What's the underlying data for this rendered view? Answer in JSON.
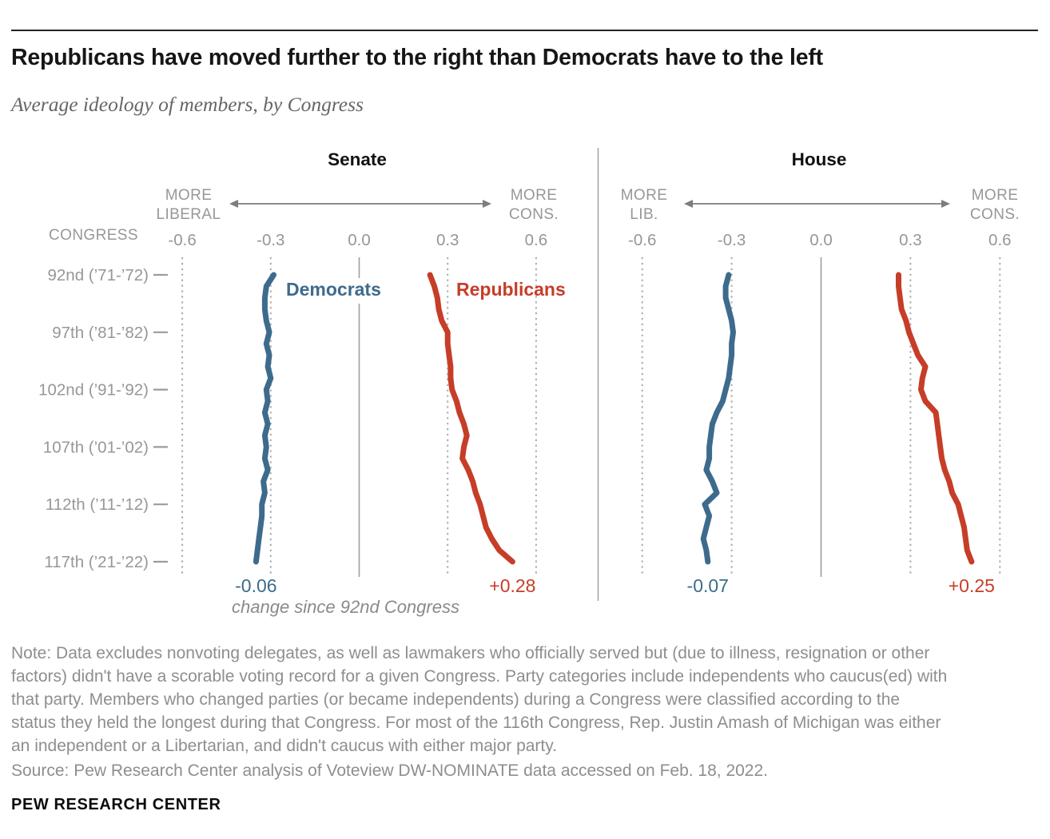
{
  "header": {
    "title": "Republicans have moved further to the right than Democrats have to the left",
    "subtitle": "Average ideology of members, by Congress"
  },
  "chart_data": {
    "type": "line",
    "x_axis": {
      "ticks": [
        "-0.6",
        "-0.3",
        "0.0",
        "0.3",
        "0.6"
      ],
      "tick_values": [
        -0.6,
        -0.3,
        0,
        0.3,
        0.6
      ],
      "range": [
        -0.6,
        0.6
      ]
    },
    "y_axis": {
      "title": "CONGRESS",
      "first_congress": 92,
      "last_congress": 117,
      "labeled_ticks": [
        {
          "congress": 92,
          "label": "92nd (’71-’72)"
        },
        {
          "congress": 97,
          "label": "97th (’81-’82)"
        },
        {
          "congress": 102,
          "label": "102nd (’91-’92)"
        },
        {
          "congress": 107,
          "label": "107th (’01-’02)"
        },
        {
          "congress": 112,
          "label": "112th (’11-’12)"
        },
        {
          "congress": 117,
          "label": "117th (’21-’22)"
        }
      ]
    },
    "panels": [
      {
        "title": "Senate",
        "left_label": [
          "MORE",
          "LIBERAL"
        ],
        "right_label": [
          "MORE",
          "CONS."
        ],
        "series": [
          {
            "name": "Democrats",
            "color": "#3d6b8c",
            "change_label": "-0.06",
            "values": [
              -0.29,
              -0.315,
              -0.32,
              -0.32,
              -0.315,
              -0.305,
              -0.315,
              -0.305,
              -0.31,
              -0.3,
              -0.315,
              -0.31,
              -0.32,
              -0.31,
              -0.32,
              -0.315,
              -0.32,
              -0.31,
              -0.325,
              -0.32,
              -0.33,
              -0.33,
              -0.335,
              -0.34,
              -0.345,
              -0.35
            ]
          },
          {
            "name": "Republicans",
            "color": "#c63d28",
            "change_label": "+0.28",
            "values": [
              0.24,
              0.255,
              0.265,
              0.27,
              0.28,
              0.3,
              0.3,
              0.305,
              0.31,
              0.31,
              0.315,
              0.33,
              0.34,
              0.355,
              0.365,
              0.355,
              0.35,
              0.37,
              0.385,
              0.395,
              0.41,
              0.42,
              0.43,
              0.45,
              0.475,
              0.52
            ]
          }
        ]
      },
      {
        "title": "House",
        "left_label": [
          "MORE",
          "LIB."
        ],
        "right_label": [
          "MORE",
          "CONS."
        ],
        "series": [
          {
            "name": "Democrats",
            "color": "#3d6b8c",
            "change_label": "-0.07",
            "values": [
              -0.31,
              -0.32,
              -0.32,
              -0.31,
              -0.3,
              -0.295,
              -0.3,
              -0.3,
              -0.305,
              -0.31,
              -0.32,
              -0.33,
              -0.35,
              -0.365,
              -0.37,
              -0.375,
              -0.375,
              -0.385,
              -0.365,
              -0.35,
              -0.39,
              -0.375,
              -0.385,
              -0.395,
              -0.385,
              -0.38
            ]
          },
          {
            "name": "Republicans",
            "color": "#c63d28",
            "change_label": "+0.25",
            "values": [
              0.26,
              0.26,
              0.265,
              0.27,
              0.285,
              0.295,
              0.31,
              0.325,
              0.35,
              0.34,
              0.335,
              0.35,
              0.385,
              0.39,
              0.395,
              0.4,
              0.405,
              0.415,
              0.43,
              0.44,
              0.46,
              0.47,
              0.48,
              0.485,
              0.49,
              0.505
            ]
          }
        ]
      }
    ],
    "annotation": "change since 92nd Congress"
  },
  "note": {
    "lines": [
      "Note: Data excludes nonvoting delegates, as well as lawmakers who officially served but (due to illness, resignation or other",
      "factors) didn't have a scorable voting record for a given Congress. Party categories include independents who caucus(ed) with",
      "that party. Members who changed parties (or became independents) during a Congress were classified according to the",
      "status they held the longest during that Congress. For most of the 116th Congress, Rep. Justin Amash of Michigan was either",
      "an independent or a Libertarian, and didn't caucus with either major party."
    ]
  },
  "source": "Source: Pew Research Center analysis of Voteview DW-NOMINATE data accessed on Feb. 18, 2022.",
  "footer": "PEW RESEARCH CENTER"
}
